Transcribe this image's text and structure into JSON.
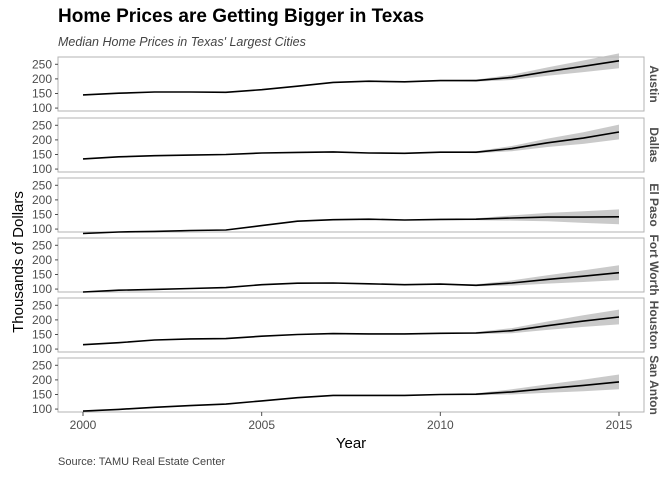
{
  "chart_data": {
    "type": "line",
    "title": "Home Prices are Getting Bigger in Texas",
    "subtitle": "Median Home Prices in Texas' Largest Cities",
    "caption": "Source: TAMU Real Estate Center",
    "xlabel": "Year",
    "ylabel": "Thousands of Dollars",
    "xlim": [
      1999.3,
      2015.7
    ],
    "ylim": [
      90,
      275
    ],
    "x_ticks": [
      2000,
      2005,
      2010,
      2015
    ],
    "y_ticks": [
      100,
      150,
      200,
      250
    ],
    "grid": false,
    "layout": "facets stacked vertically, shared axes, strip labels on right",
    "line_color": "#000000",
    "ribbon_color": "#bdbdbd",
    "x": [
      2000,
      2001,
      2002,
      2003,
      2004,
      2005,
      2006,
      2007,
      2008,
      2009,
      2010,
      2011,
      2012,
      2013,
      2014,
      2015
    ],
    "series": [
      {
        "name": "Austin",
        "strip_label": "Austin",
        "values": [
          145,
          151,
          155,
          155,
          154,
          163,
          175,
          188,
          192,
          190,
          194,
          194,
          205,
          225,
          243,
          262
        ]
      },
      {
        "name": "Dallas",
        "strip_label": "Dallas",
        "values": [
          135,
          142,
          146,
          148,
          150,
          155,
          157,
          159,
          155,
          154,
          158,
          158,
          170,
          190,
          206,
          227
        ]
      },
      {
        "name": "El Paso",
        "strip_label": "El Paso",
        "values": [
          85,
          90,
          92,
          95,
          97,
          112,
          127,
          132,
          134,
          131,
          133,
          134,
          138,
          141,
          141,
          142
        ]
      },
      {
        "name": "Fort Worth",
        "strip_label": "Fort Worth",
        "values": [
          90,
          96,
          99,
          102,
          105,
          115,
          120,
          121,
          118,
          115,
          117,
          113,
          121,
          133,
          144,
          156
        ]
      },
      {
        "name": "Houston",
        "strip_label": "Houston",
        "values": [
          115,
          122,
          131,
          135,
          136,
          144,
          150,
          153,
          152,
          152,
          154,
          155,
          163,
          180,
          196,
          210
        ]
      },
      {
        "name": "San Antonio",
        "strip_label": "San Anton",
        "values": [
          93,
          99,
          106,
          112,
          117,
          128,
          139,
          147,
          147,
          147,
          150,
          151,
          159,
          170,
          181,
          193
        ]
      }
    ]
  }
}
